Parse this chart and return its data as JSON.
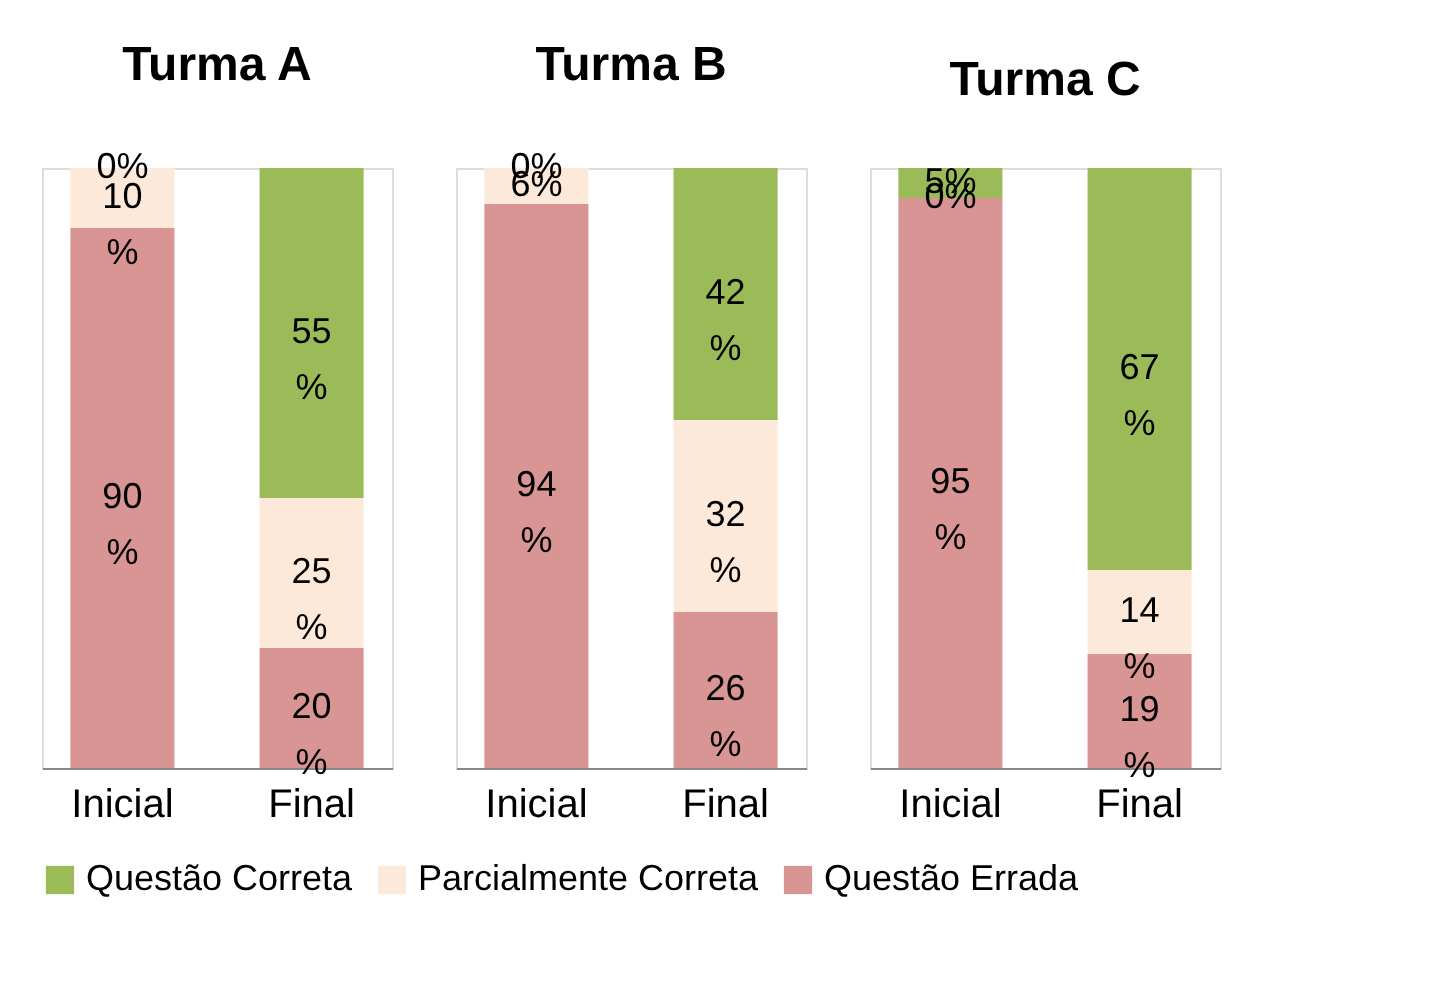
{
  "chart_data": [
    {
      "type": "bar",
      "title": "Turma A",
      "categories": [
        "Inicial",
        "Final"
      ],
      "stacked": true,
      "ylim": [
        0,
        100
      ],
      "tick_labels": "x",
      "grid": false,
      "legend": "bottom",
      "series": [
        {
          "name": "Questão Errada",
          "color": "#d99594",
          "values": [
            90,
            20
          ],
          "value_labels": [
            "90%",
            "20%"
          ]
        },
        {
          "name": "Parcialmente Correta",
          "color": "#fde9d9",
          "values": [
            10,
            25
          ],
          "value_labels": [
            "10%",
            "25%"
          ]
        },
        {
          "name": "Questão Correta",
          "color": "#9bbb59",
          "values": [
            0,
            55
          ],
          "value_labels": [
            "0%",
            "55%"
          ]
        }
      ]
    },
    {
      "type": "bar",
      "title": "Turma B",
      "categories": [
        "Inicial",
        "Final"
      ],
      "stacked": true,
      "ylim": [
        0,
        100
      ],
      "tick_labels": "x",
      "grid": false,
      "legend": "bottom",
      "series": [
        {
          "name": "Questão Errada",
          "color": "#d99594",
          "values": [
            94,
            26
          ],
          "value_labels": [
            "94%",
            "26%"
          ]
        },
        {
          "name": "Parcialmente Correta",
          "color": "#fde9d9",
          "values": [
            6,
            32
          ],
          "value_labels": [
            "6%",
            "32%"
          ]
        },
        {
          "name": "Questão Correta",
          "color": "#9bbb59",
          "values": [
            0,
            42
          ],
          "value_labels": [
            "0%",
            "42%"
          ]
        }
      ]
    },
    {
      "type": "bar",
      "title": "Turma C",
      "categories": [
        "Inicial",
        "Final"
      ],
      "stacked": true,
      "ylim": [
        0,
        100
      ],
      "tick_labels": "x",
      "grid": false,
      "legend": "bottom",
      "series": [
        {
          "name": "Questão Errada",
          "color": "#d99594",
          "values": [
            95,
            19
          ],
          "value_labels": [
            "95%",
            "19%"
          ]
        },
        {
          "name": "Parcialmente Correta",
          "color": "#fde9d9",
          "values": [
            0,
            14
          ],
          "value_labels": [
            "0%",
            "14%"
          ]
        },
        {
          "name": "Questão Correta",
          "color": "#9bbb59",
          "values": [
            5,
            67
          ],
          "value_labels": [
            "5%",
            "67%"
          ]
        }
      ]
    }
  ]
}
